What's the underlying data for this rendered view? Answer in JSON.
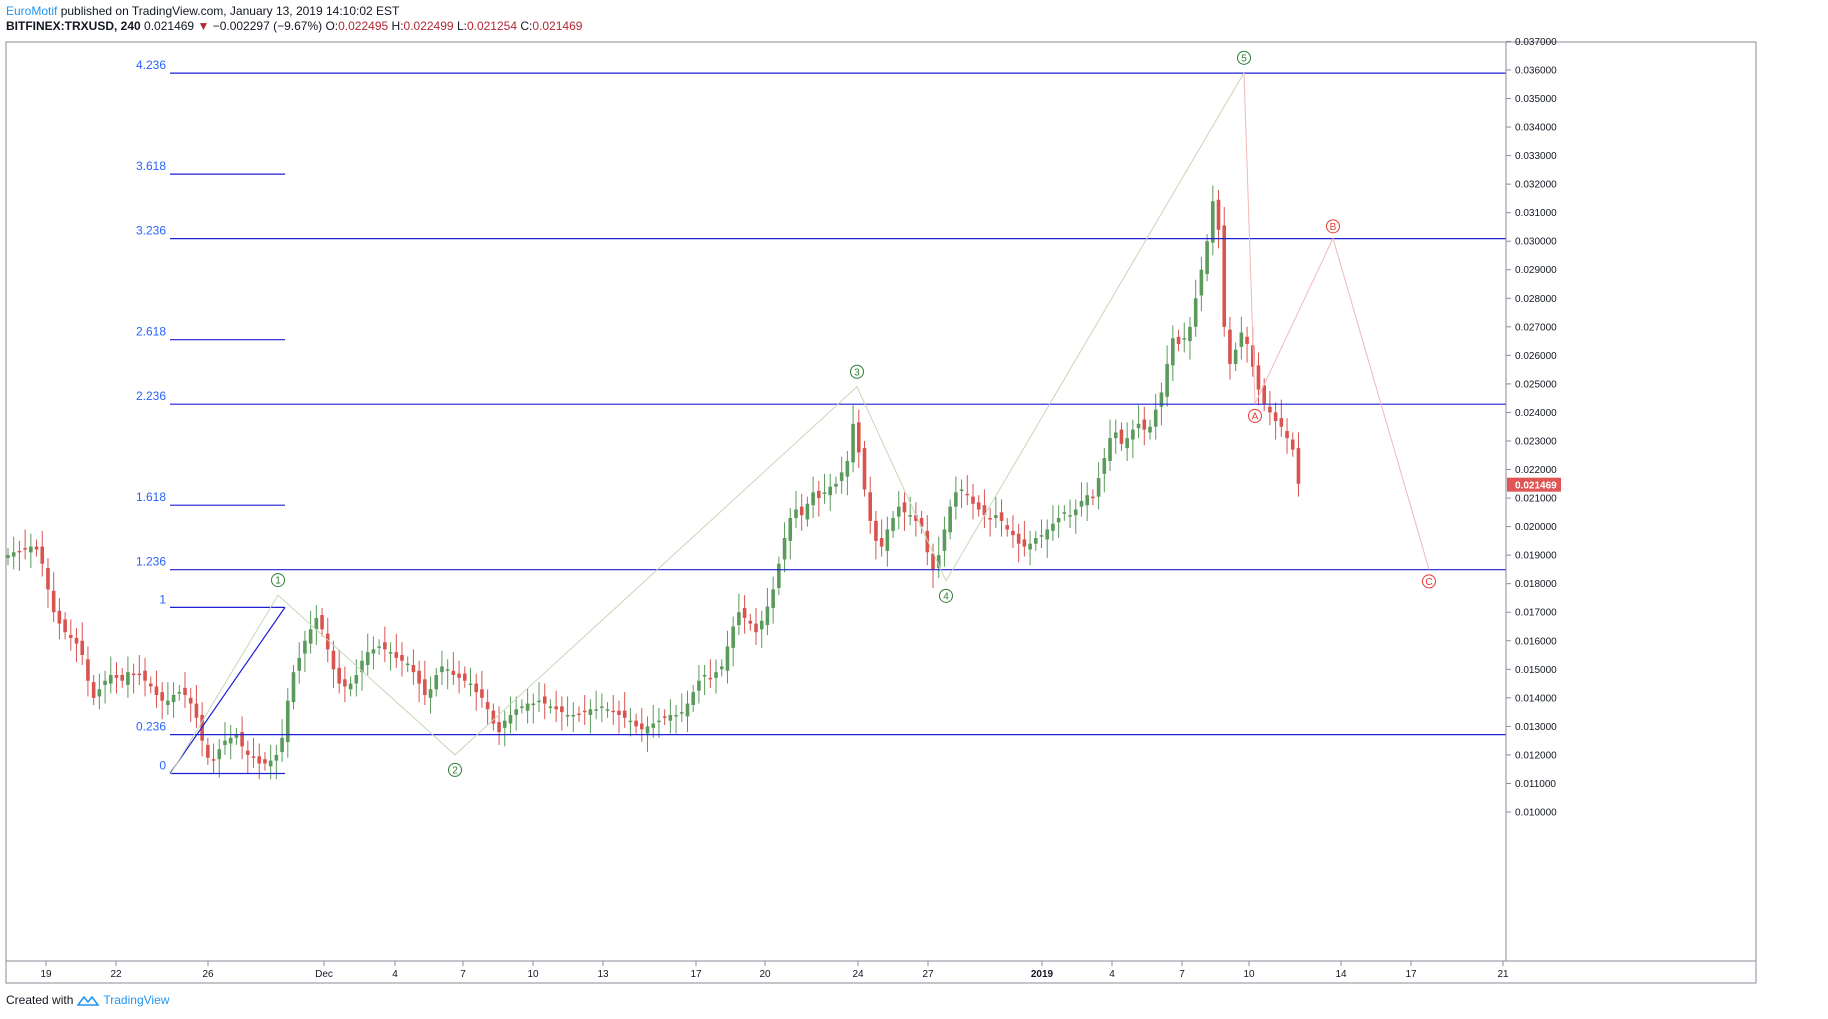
{
  "header": {
    "author": "EuroMotif",
    "published": "published on TradingView.com, January 13, 2019 14:10:02 EST",
    "symbol": "BITFINEX:TRXUSD, 240",
    "last": "0.021469",
    "change": "−0.002297 (−9.67%)",
    "o_label": "O:",
    "o": "0.022495",
    "h_label": "H:",
    "h": "0.022499",
    "l_label": "L:",
    "l": "0.021254",
    "c_label": "C:",
    "c": "0.021469"
  },
  "footer": {
    "created": "Created with",
    "brand": "TradingView"
  },
  "colors": {
    "up": "#5a9a5a",
    "down": "#d9534f",
    "fib": "#1f1fd6",
    "impulse": "#2e7d32",
    "corrective": "#e53935",
    "price_tag": "#e05555"
  },
  "chart_data": {
    "type": "candlestick",
    "y_axis_labels": [
      "0.037000",
      "0.036000",
      "0.035000",
      "0.034000",
      "0.033000",
      "0.032000",
      "0.031000",
      "0.030000",
      "0.029000",
      "0.028000",
      "0.027000",
      "0.026000",
      "0.025000",
      "0.024000",
      "0.023000",
      "0.022000",
      "0.021000",
      "0.020000",
      "0.019000",
      "0.018000",
      "0.017000",
      "0.016000",
      "0.015000",
      "0.014000",
      "0.013000",
      "0.012000",
      "0.011000",
      "0.010000"
    ],
    "ylim": [
      0.0096,
      0.0373
    ],
    "x_axis_labels": [
      "19",
      "22",
      "26",
      "Dec",
      "4",
      "7",
      "10",
      "13",
      "17",
      "20",
      "24",
      "27",
      "2019",
      "4",
      "7",
      "10",
      "14",
      "17",
      "21"
    ],
    "last_price_tag": "0.021469",
    "fib_levels": [
      {
        "label": "4.236",
        "value": 0.03589
      },
      {
        "label": "3.618",
        "value": 0.03235
      },
      {
        "label": "3.236",
        "value": 0.03009
      },
      {
        "label": "2.618",
        "value": 0.02655
      },
      {
        "label": "2.236",
        "value": 0.02429
      },
      {
        "label": "1.618",
        "value": 0.02075
      },
      {
        "label": "1.236",
        "value": 0.01849
      },
      {
        "label": "1",
        "value": 0.01717
      },
      {
        "label": "0.236",
        "value": 0.01271
      },
      {
        "label": "0",
        "value": 0.01135
      }
    ],
    "impulse_waves": [
      {
        "label": "1",
        "price": 0.0176
      },
      {
        "label": "2",
        "price": 0.012
      },
      {
        "label": "3",
        "price": 0.0249
      },
      {
        "label": "4",
        "price": 0.0181
      },
      {
        "label": "5",
        "price": 0.0359
      }
    ],
    "corrective_waves": [
      {
        "label": "A",
        "price": 0.0243
      },
      {
        "label": "B",
        "price": 0.0301
      },
      {
        "label": "C",
        "price": 0.0185
      }
    ],
    "wave_start_price": 0.0113,
    "closes": [
      0.019,
      0.0191,
      0.0191,
      0.0192,
      0.0193,
      0.0192,
      0.0187,
      0.0178,
      0.017,
      0.0166,
      0.0163,
      0.0161,
      0.0159,
      0.0155,
      0.0146,
      0.014,
      0.0143,
      0.0146,
      0.0148,
      0.0147,
      0.0146,
      0.0149,
      0.0148,
      0.0148,
      0.0146,
      0.0144,
      0.0141,
      0.0139,
      0.0139,
      0.0141,
      0.0142,
      0.0141,
      0.0138,
      0.0133,
      0.0125,
      0.0119,
      0.0118,
      0.0122,
      0.0125,
      0.0126,
      0.0127,
      0.0123,
      0.012,
      0.0119,
      0.0117,
      0.0117,
      0.0118,
      0.012,
      0.0126,
      0.0139,
      0.0149,
      0.0154,
      0.016,
      0.0164,
      0.0168,
      0.0164,
      0.0157,
      0.015,
      0.0145,
      0.0144,
      0.0145,
      0.0148,
      0.0153,
      0.0156,
      0.0157,
      0.0158,
      0.0157,
      0.0156,
      0.0154,
      0.0153,
      0.0152,
      0.0149,
      0.0145,
      0.0141,
      0.0143,
      0.0148,
      0.0151,
      0.015,
      0.0148,
      0.0147,
      0.0146,
      0.0145,
      0.0142,
      0.014,
      0.0136,
      0.0131,
      0.0128,
      0.0132,
      0.0134,
      0.0136,
      0.0137,
      0.0138,
      0.0138,
      0.0139,
      0.0138,
      0.0137,
      0.0136,
      0.0135,
      0.0134,
      0.0134,
      0.0134,
      0.0135,
      0.0136,
      0.0136,
      0.0137,
      0.0136,
      0.0135,
      0.0134,
      0.0133,
      0.0132,
      0.013,
      0.0129,
      0.013,
      0.0131,
      0.0132,
      0.0133,
      0.0134,
      0.0134,
      0.0135,
      0.0138,
      0.0142,
      0.0146,
      0.0148,
      0.0147,
      0.0149,
      0.0151,
      0.0158,
      0.0165,
      0.017,
      0.0168,
      0.0166,
      0.0163,
      0.0167,
      0.0172,
      0.0178,
      0.0187,
      0.0196,
      0.0203,
      0.0206,
      0.0204,
      0.0208,
      0.0212,
      0.021,
      0.0212,
      0.0214,
      0.0215,
      0.0219,
      0.0223,
      0.0236,
      0.0226,
      0.0213,
      0.0202,
      0.0195,
      0.0193,
      0.0199,
      0.0203,
      0.0207,
      0.0205,
      0.0204,
      0.0202,
      0.02,
      0.0191,
      0.0185,
      0.019,
      0.0199,
      0.0207,
      0.0212,
      0.0213,
      0.0211,
      0.0208,
      0.0206,
      0.0204,
      0.0203,
      0.0204,
      0.0202,
      0.0199,
      0.0197,
      0.0194,
      0.0193,
      0.0194,
      0.0196,
      0.0197,
      0.0199,
      0.0201,
      0.0203,
      0.0205,
      0.0204,
      0.0206,
      0.0209,
      0.0211,
      0.021,
      0.0217,
      0.0224,
      0.0231,
      0.0233,
      0.0229,
      0.0231,
      0.0234,
      0.0236,
      0.0234,
      0.0235,
      0.0241,
      0.0247,
      0.0257,
      0.0266,
      0.0264,
      0.0266,
      0.027,
      0.028,
      0.029,
      0.03,
      0.0314,
      0.0304,
      0.027,
      0.0257,
      0.0262,
      0.0268,
      0.0264,
      0.0256,
      0.0248,
      0.0243,
      0.024,
      0.0237,
      0.0235,
      0.0231,
      0.0227,
      0.0215
    ]
  }
}
